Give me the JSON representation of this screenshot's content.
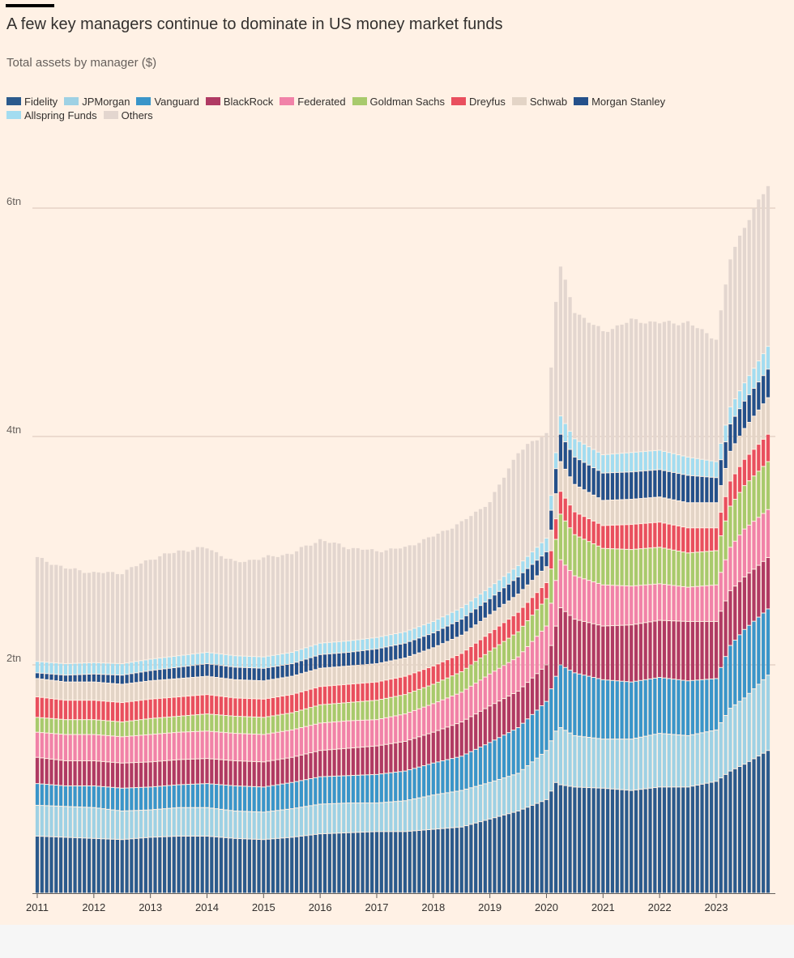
{
  "chart_data": {
    "type": "bar",
    "stacked": true,
    "title": "A few key managers continue to dominate in US money market funds",
    "subtitle": "Total assets by manager ($)",
    "xlabel": "",
    "ylabel": "",
    "unit": "$ trillion",
    "ylim": [
      0,
      6.5
    ],
    "yticks": [
      {
        "value": 2,
        "label": "2tn"
      },
      {
        "value": 4,
        "label": "4tn"
      },
      {
        "value": 6,
        "label": "6tn"
      }
    ],
    "x_range": [
      2011.0,
      2023.917
    ],
    "xticks": [
      {
        "value": 2011,
        "label": "2011"
      },
      {
        "value": 2012,
        "label": "2012"
      },
      {
        "value": 2013,
        "label": "2013"
      },
      {
        "value": 2014,
        "label": "2014"
      },
      {
        "value": 2015,
        "label": "2015"
      },
      {
        "value": 2016,
        "label": "2016"
      },
      {
        "value": 2017,
        "label": "2017"
      },
      {
        "value": 2018,
        "label": "2018"
      },
      {
        "value": 2019,
        "label": "2019"
      },
      {
        "value": 2020,
        "label": "2020"
      },
      {
        "value": 2021,
        "label": "2021"
      },
      {
        "value": 2022,
        "label": "2022"
      },
      {
        "value": 2023,
        "label": "2023"
      }
    ],
    "grid": "horizontal",
    "legend_position": "top",
    "frequency": "monthly",
    "x": [
      2011.0,
      2011.5,
      2012.0,
      2012.5,
      2013.0,
      2013.5,
      2014.0,
      2014.5,
      2015.0,
      2015.5,
      2016.0,
      2016.5,
      2017.0,
      2017.5,
      2018.0,
      2018.5,
      2019.0,
      2019.5,
      2020.0,
      2020.167,
      2020.25,
      2020.5,
      2021.0,
      2021.5,
      2022.0,
      2022.5,
      2023.0,
      2023.25,
      2023.5,
      2023.917
    ],
    "series": [
      {
        "name": "Fidelity",
        "color": "#2b5a8c",
        "values": [
          0.5,
          0.49,
          0.48,
          0.47,
          0.49,
          0.5,
          0.5,
          0.48,
          0.47,
          0.49,
          0.52,
          0.53,
          0.54,
          0.54,
          0.56,
          0.58,
          0.65,
          0.72,
          0.82,
          0.97,
          0.95,
          0.93,
          0.92,
          0.9,
          0.93,
          0.93,
          0.98,
          1.07,
          1.13,
          1.25
        ]
      },
      {
        "name": "JPMorgan",
        "color": "#9ed1e4",
        "values": [
          0.27,
          0.27,
          0.27,
          0.25,
          0.24,
          0.25,
          0.25,
          0.24,
          0.24,
          0.25,
          0.26,
          0.26,
          0.25,
          0.27,
          0.3,
          0.32,
          0.32,
          0.33,
          0.43,
          0.45,
          0.5,
          0.45,
          0.43,
          0.45,
          0.47,
          0.45,
          0.45,
          0.55,
          0.58,
          0.66
        ]
      },
      {
        "name": "Vanguard",
        "color": "#3a95c9",
        "values": [
          0.19,
          0.18,
          0.19,
          0.2,
          0.2,
          0.2,
          0.21,
          0.22,
          0.22,
          0.23,
          0.24,
          0.24,
          0.25,
          0.26,
          0.28,
          0.3,
          0.35,
          0.4,
          0.43,
          0.48,
          0.55,
          0.55,
          0.52,
          0.5,
          0.49,
          0.48,
          0.45,
          0.55,
          0.6,
          0.58
        ]
      },
      {
        "name": "BlackRock",
        "color": "#b03a63",
        "values": [
          0.23,
          0.22,
          0.22,
          0.22,
          0.22,
          0.22,
          0.22,
          0.22,
          0.22,
          0.22,
          0.23,
          0.24,
          0.25,
          0.26,
          0.27,
          0.3,
          0.32,
          0.32,
          0.32,
          0.44,
          0.5,
          0.47,
          0.47,
          0.5,
          0.5,
          0.52,
          0.5,
          0.48,
          0.46,
          0.45
        ]
      },
      {
        "name": "Federated",
        "color": "#f182a8",
        "values": [
          0.22,
          0.23,
          0.23,
          0.23,
          0.24,
          0.24,
          0.24,
          0.24,
          0.24,
          0.24,
          0.24,
          0.24,
          0.23,
          0.24,
          0.25,
          0.26,
          0.28,
          0.3,
          0.34,
          0.4,
          0.42,
          0.38,
          0.36,
          0.34,
          0.32,
          0.3,
          0.32,
          0.38,
          0.42,
          0.42
        ]
      },
      {
        "name": "Goldman Sachs",
        "color": "#a8ca6c",
        "values": [
          0.13,
          0.13,
          0.13,
          0.13,
          0.14,
          0.14,
          0.15,
          0.15,
          0.15,
          0.15,
          0.16,
          0.16,
          0.17,
          0.17,
          0.17,
          0.18,
          0.2,
          0.22,
          0.24,
          0.36,
          0.4,
          0.36,
          0.32,
          0.32,
          0.32,
          0.3,
          0.3,
          0.36,
          0.38,
          0.42
        ]
      },
      {
        "name": "Dreyfus",
        "color": "#e94f5e",
        "values": [
          0.18,
          0.17,
          0.17,
          0.17,
          0.17,
          0.17,
          0.17,
          0.16,
          0.16,
          0.16,
          0.16,
          0.16,
          0.16,
          0.16,
          0.16,
          0.16,
          0.16,
          0.17,
          0.14,
          0.18,
          0.2,
          0.2,
          0.2,
          0.22,
          0.22,
          0.22,
          0.2,
          0.22,
          0.23,
          0.24
        ]
      },
      {
        "name": "Schwab",
        "color": "#e3d4c6",
        "values": [
          0.16,
          0.16,
          0.16,
          0.16,
          0.16,
          0.16,
          0.16,
          0.16,
          0.16,
          0.16,
          0.16,
          0.16,
          0.16,
          0.16,
          0.16,
          0.16,
          0.16,
          0.16,
          0.14,
          0.22,
          0.26,
          0.24,
          0.22,
          0.22,
          0.22,
          0.22,
          0.22,
          0.26,
          0.27,
          0.32
        ]
      },
      {
        "name": "Morgan Stanley",
        "color": "#24508a",
        "values": [
          0.05,
          0.06,
          0.07,
          0.08,
          0.09,
          0.1,
          0.11,
          0.11,
          0.11,
          0.11,
          0.12,
          0.12,
          0.13,
          0.13,
          0.13,
          0.14,
          0.14,
          0.15,
          0.13,
          0.22,
          0.24,
          0.24,
          0.24,
          0.24,
          0.24,
          0.24,
          0.22,
          0.24,
          0.24,
          0.25
        ]
      },
      {
        "name": "Allspring Funds",
        "color": "#a3dcf0",
        "values": [
          0.1,
          0.1,
          0.1,
          0.1,
          0.1,
          0.1,
          0.1,
          0.1,
          0.1,
          0.1,
          0.1,
          0.1,
          0.1,
          0.1,
          0.1,
          0.1,
          0.1,
          0.1,
          0.12,
          0.14,
          0.16,
          0.16,
          0.16,
          0.17,
          0.17,
          0.16,
          0.14,
          0.15,
          0.16,
          0.2
        ]
      },
      {
        "name": "Others",
        "color": "#e3d6cf",
        "values": [
          0.91,
          0.84,
          0.79,
          0.8,
          0.88,
          0.92,
          0.92,
          0.82,
          0.87,
          0.87,
          0.91,
          0.82,
          0.76,
          0.74,
          0.75,
          0.75,
          0.75,
          1.0,
          0.92,
          1.34,
          1.3,
          1.12,
          1.08,
          1.16,
          1.12,
          1.18,
          1.08,
          1.3,
          1.38,
          1.41
        ]
      }
    ]
  }
}
